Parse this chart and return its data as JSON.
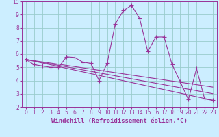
{
  "xlabel": "Windchill (Refroidissement éolien,°C)",
  "xlim": [
    -0.5,
    23.5
  ],
  "ylim": [
    2,
    10
  ],
  "xticks": [
    0,
    1,
    2,
    3,
    4,
    5,
    6,
    7,
    8,
    9,
    10,
    11,
    12,
    13,
    14,
    15,
    16,
    17,
    18,
    19,
    20,
    21,
    22,
    23
  ],
  "yticks": [
    2,
    3,
    4,
    5,
    6,
    7,
    8,
    9,
    10
  ],
  "background_color": "#cceeff",
  "grid_color": "#99cccc",
  "line_color": "#993399",
  "series_main": [
    5.6,
    5.2,
    5.1,
    5.0,
    5.0,
    5.8,
    5.75,
    5.4,
    5.3,
    4.0,
    5.3,
    8.3,
    9.3,
    9.7,
    8.7,
    6.2,
    7.3,
    7.3,
    5.2,
    3.9,
    2.55,
    4.9,
    2.6,
    2.5
  ],
  "series_linear1": [
    [
      0,
      5.6
    ],
    [
      23,
      2.5
    ]
  ],
  "series_linear2": [
    [
      0,
      5.6
    ],
    [
      23,
      3.0
    ]
  ],
  "series_linear3": [
    [
      0,
      5.6
    ],
    [
      23,
      3.5
    ]
  ],
  "marker": "+",
  "marker_size": 4,
  "line_width": 0.8,
  "font_size": 6.5,
  "tick_font_size": 5.5
}
